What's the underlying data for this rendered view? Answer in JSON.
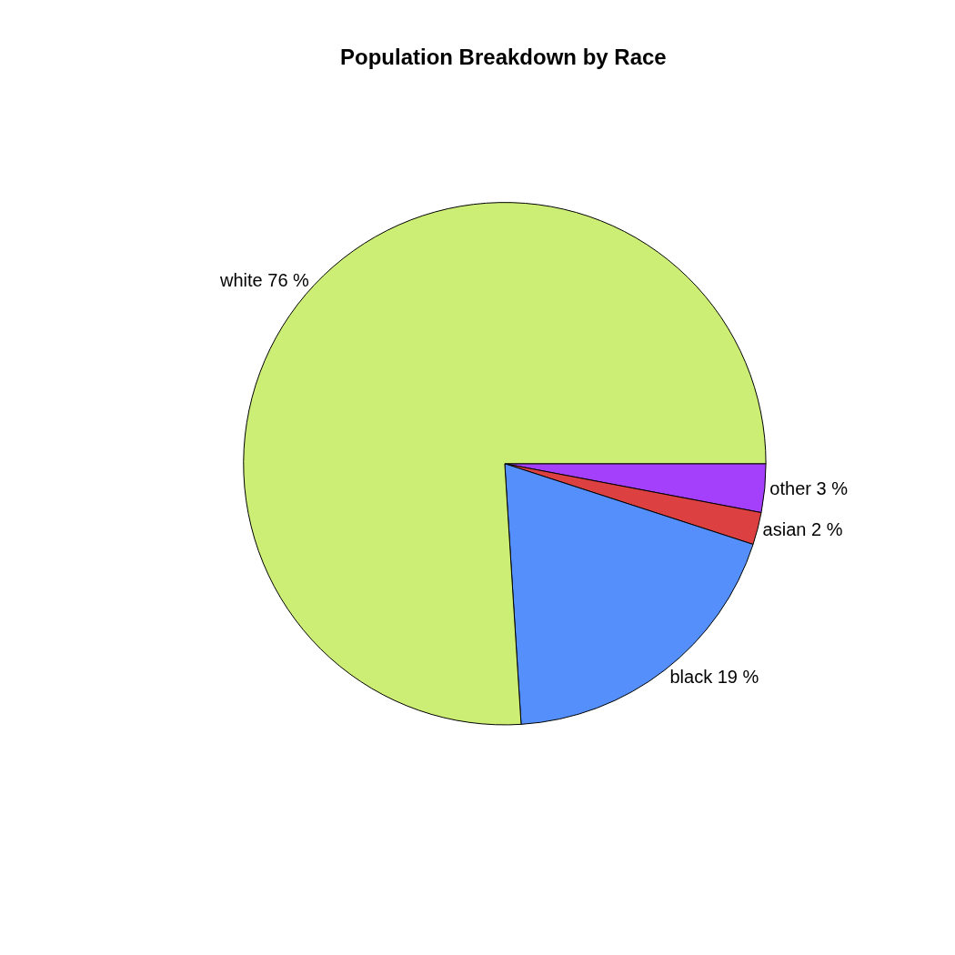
{
  "chart_data": {
    "type": "pie",
    "title": "Population Breakdown by Race",
    "categories": [
      "white",
      "black",
      "asian",
      "other"
    ],
    "values": [
      76,
      19,
      2,
      3
    ],
    "value_labels": [
      "76 %",
      "19 %",
      "2 %",
      "3 %"
    ],
    "colors": [
      "#cdee74",
      "#548ffb",
      "#dc4040",
      "#a440fb"
    ],
    "legend": false
  }
}
